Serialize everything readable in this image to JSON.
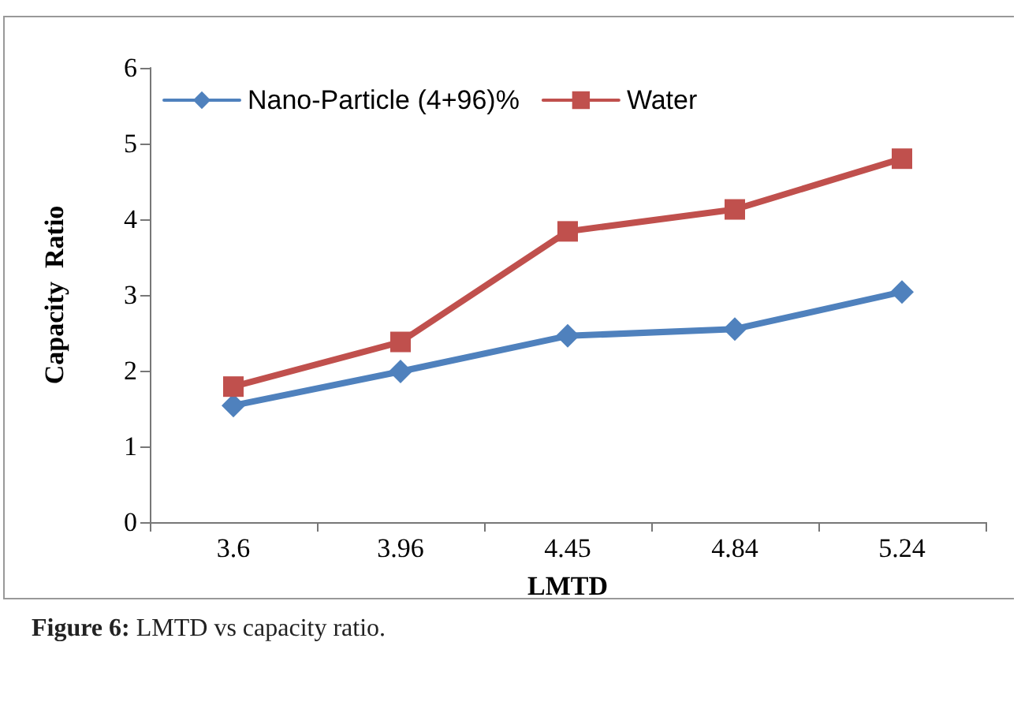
{
  "chart_data": {
    "type": "line",
    "xlabel": "LMTD",
    "ylabel": "Capacity  Ratio",
    "categories": [
      "3.6",
      "3.96",
      "4.45",
      "4.84",
      "5.24"
    ],
    "series": [
      {
        "name": "Nano-Particle (4+96)%",
        "color": "#4f81bd",
        "marker": "diamond",
        "values": [
          1.54,
          1.99,
          2.46,
          2.55,
          3.04
        ]
      },
      {
        "name": "Water",
        "color": "#c0504d",
        "marker": "square",
        "values": [
          1.79,
          2.38,
          3.84,
          4.13,
          4.8
        ]
      }
    ],
    "ylim": [
      0,
      6
    ],
    "yticks": [
      0,
      1,
      2,
      3,
      4,
      5,
      6
    ],
    "grid": false,
    "legend": "top left",
    "line_style": "solid",
    "annotations": [
      "Figure 6: LMTD vs capacity ratio."
    ]
  }
}
